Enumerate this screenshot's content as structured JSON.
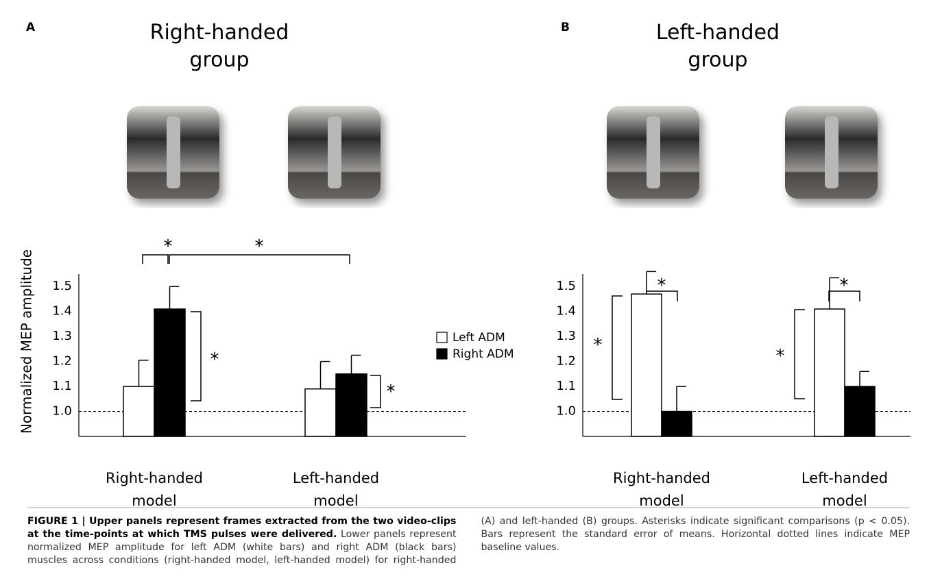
{
  "chart_data": [
    {
      "type": "bar",
      "panel": "A",
      "title": "Right-handed group",
      "y_label": "Normalized MEP amplitude",
      "categories": [
        "Right-handed model",
        "Left-handed model"
      ],
      "series": [
        {
          "name": "Left ADM",
          "color": "#ffffff",
          "values": [
            1.1,
            1.09
          ],
          "errors": [
            0.105,
            0.11
          ]
        },
        {
          "name": "Right ADM",
          "color": "#000000",
          "values": [
            1.41,
            1.15
          ],
          "errors": [
            0.09,
            0.075
          ]
        }
      ],
      "ylim": [
        0.9,
        1.55
      ],
      "yticks": [
        {
          "value": 1.0,
          "label": "1.0"
        },
        1.1,
        1.2,
        1.3,
        1.4,
        1.5
      ],
      "baseline": 1.0,
      "annotations": [
        "*",
        "*",
        "*",
        "*"
      ]
    },
    {
      "type": "bar",
      "panel": "B",
      "title": "Left-handed group",
      "categories": [
        "Right-handed model",
        "Left-handed model"
      ],
      "series": [
        {
          "color": "#ffffff",
          "values": [
            1.47,
            1.41
          ],
          "errors": [
            0.09,
            0.125
          ]
        },
        {
          "color": "#000000",
          "values": [
            1.0,
            1.1
          ],
          "errors": [
            0.1,
            0.06
          ]
        }
      ],
      "ylim": [
        0.9,
        1.55
      ],
      "yticks": [
        {
          "value": 1.0,
          "label": "1.0"
        },
        1.1,
        1.2,
        1.3,
        1.4,
        1.5
      ],
      "baseline": 1.0,
      "annotations": [
        "*",
        "*",
        "*",
        "*"
      ]
    }
  ],
  "caption": {
    "title": "FIGURE 1 | Upper panels represent frames extracted from the two video-clips at the time-points at which TMS pulses were delivered.",
    "text": "Lower panels represent normalized MEP amplitude for left ADM (white bars) and right ADM (black bars) muscles across conditions (right-handed model, left-handed model) for right-handed (A) and left-handed (B) groups. Asterisks indicate significant comparisons (p < 0.05). Bars represent the standard error of means. Horizontal dotted lines indicate MEP baseline values."
  }
}
